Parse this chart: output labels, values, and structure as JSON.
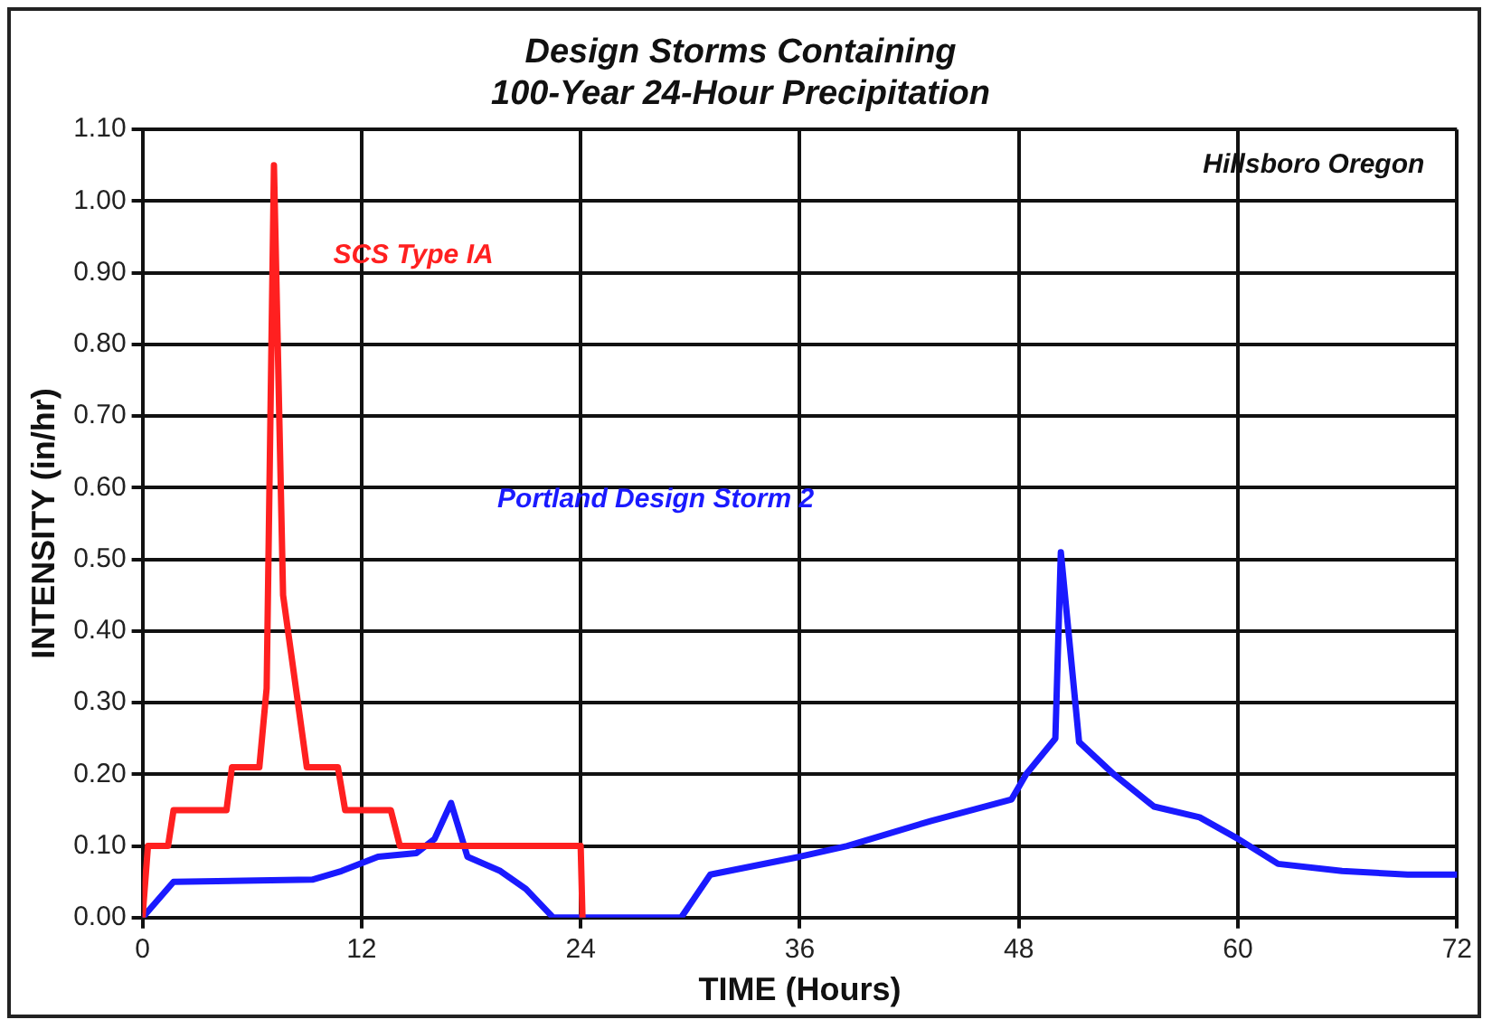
{
  "chart_data": {
    "type": "line",
    "title": [
      "Design Storms Containing",
      "100-Year 24-Hour Precipitation"
    ],
    "xlabel": "TIME (Hours)",
    "ylabel": "INTENSITY (in/hr)",
    "annotations": [
      "Hillsboro Oregon"
    ],
    "xlim": [
      0,
      72
    ],
    "xticks": [
      0,
      12,
      24,
      36,
      48,
      60,
      72
    ],
    "ylim": [
      0,
      1.1
    ],
    "yticks": [
      {
        "value": 0,
        "label": "0.00"
      },
      {
        "value": 0.1,
        "label": "0.10"
      },
      {
        "value": 0.2,
        "label": "0.20"
      },
      {
        "value": 0.3,
        "label": "0.30"
      },
      {
        "value": 0.4,
        "label": "0.40"
      },
      {
        "value": 0.5,
        "label": "0.50"
      },
      {
        "value": 0.6,
        "label": "0.60"
      },
      {
        "value": 0.7,
        "label": "0.70"
      },
      {
        "value": 0.8,
        "label": "0.80"
      },
      {
        "value": 0.9,
        "label": "0.90"
      },
      {
        "value": 1,
        "label": "1.00"
      },
      {
        "value": 1.1,
        "label": "1.10"
      }
    ],
    "grid": true,
    "legend": false,
    "marker": "none",
    "line_style": "solid",
    "series": [
      {
        "name": "SCS Type IA",
        "color": "#ff2020",
        "x": [
          0,
          0.3,
          1.4,
          1.7,
          4.6,
          4.9,
          6.4,
          6.8,
          7.2,
          7.7,
          9.0,
          10.7,
          11.1,
          13.6,
          14.1,
          24,
          24.1
        ],
        "values": [
          0,
          0.1,
          0.1,
          0.15,
          0.15,
          0.21,
          0.21,
          0.32,
          1.05,
          0.45,
          0.21,
          0.21,
          0.15,
          0.15,
          0.1,
          0.1,
          0
        ]
      },
      {
        "name": "Portland Design Storm 2",
        "color": "#1a1aff",
        "x": [
          0,
          1.7,
          9.3,
          10.9,
          12.9,
          15,
          16,
          16.9,
          17.8,
          19.6,
          21,
          22.5,
          29.5,
          31.1,
          36,
          38.6,
          43.2,
          47.6,
          48.4,
          50,
          50.3,
          51.3,
          53.2,
          55.4,
          57.9,
          60,
          62.2,
          65.7,
          69.3,
          72
        ],
        "values": [
          0,
          0.05,
          0.053,
          0.065,
          0.085,
          0.09,
          0.11,
          0.16,
          0.085,
          0.065,
          0.04,
          0,
          0,
          0.06,
          0.085,
          0.1,
          0.135,
          0.165,
          0.2,
          0.25,
          0.51,
          0.245,
          0.2,
          0.155,
          0.14,
          0.11,
          0.075,
          0.065,
          0.06,
          0.06
        ]
      }
    ]
  }
}
